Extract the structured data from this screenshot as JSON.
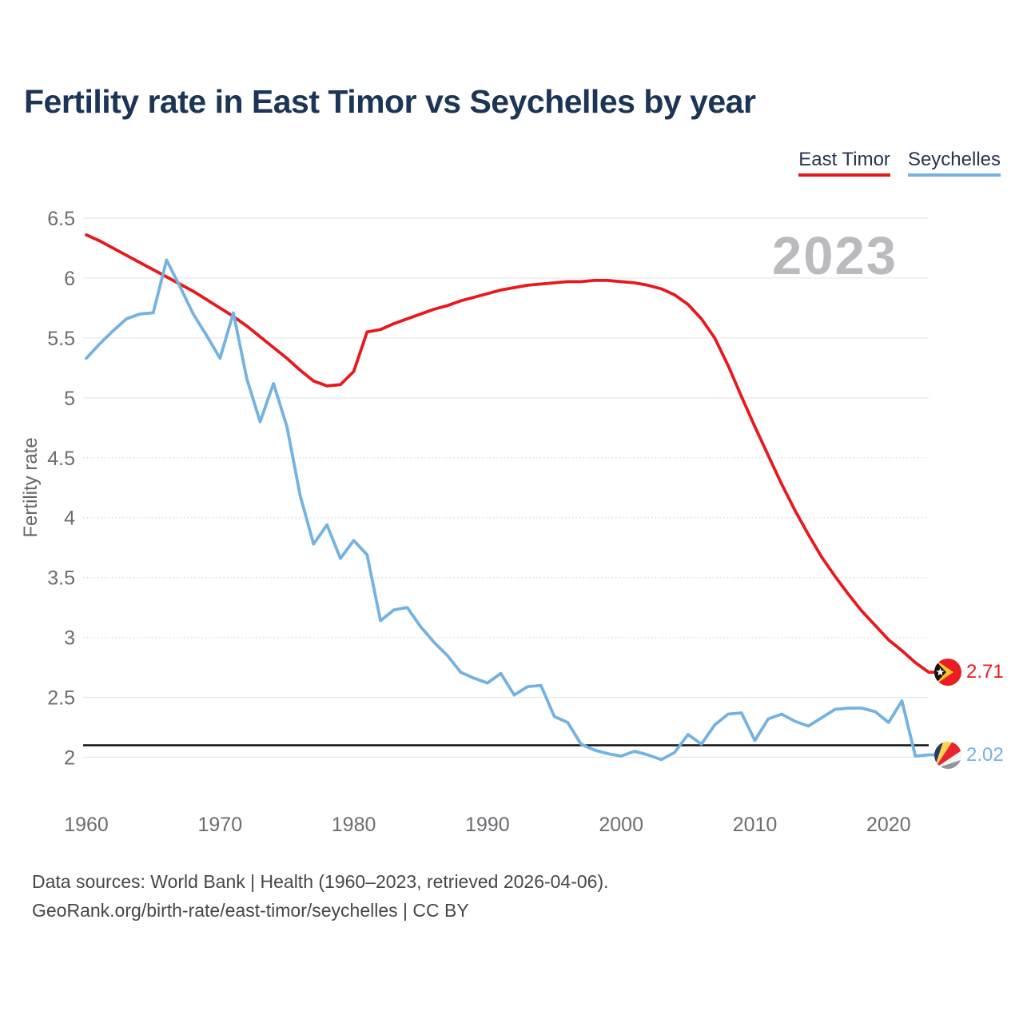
{
  "title": "Fertility rate in East Timor vs Seychelles by year",
  "legend": {
    "items": [
      {
        "label": "East Timor",
        "color": "#e8191d"
      },
      {
        "label": "Seychelles",
        "color": "#74b2e2"
      }
    ]
  },
  "watermark": "2023",
  "footer": {
    "line1": "Data sources: World Bank | Health (1960–2023, retrieved 2026-04-06).",
    "line2": "GeoRank.org/birth-rate/east-timor/seychelles | CC BY"
  },
  "chart_data": {
    "type": "line",
    "title": "Fertility rate in East Timor vs Seychelles by year",
    "xlabel": "",
    "ylabel": "Fertility rate",
    "xticks": [
      1960,
      1970,
      1980,
      1990,
      2000,
      2010,
      2020
    ],
    "yticks": [
      2,
      2.5,
      3,
      3.5,
      4,
      4.5,
      5,
      5.5,
      6,
      6.5
    ],
    "ylim": [
      1.85,
      6.6
    ],
    "xlim": [
      1960,
      2023
    ],
    "grid": true,
    "legend_position": "top-right",
    "reference_line": 2.1,
    "x": [
      1960,
      1961,
      1962,
      1963,
      1964,
      1965,
      1966,
      1967,
      1968,
      1969,
      1970,
      1971,
      1972,
      1973,
      1974,
      1975,
      1976,
      1977,
      1978,
      1979,
      1980,
      1981,
      1982,
      1983,
      1984,
      1985,
      1986,
      1987,
      1988,
      1989,
      1990,
      1991,
      1992,
      1993,
      1994,
      1995,
      1996,
      1997,
      1998,
      1999,
      2000,
      2001,
      2002,
      2003,
      2004,
      2005,
      2006,
      2007,
      2008,
      2009,
      2010,
      2011,
      2012,
      2013,
      2014,
      2015,
      2016,
      2017,
      2018,
      2019,
      2020,
      2021,
      2022,
      2023
    ],
    "series": [
      {
        "name": "East Timor",
        "color": "#e8191d",
        "end_label": "2.71",
        "values": [
          6.36,
          6.31,
          6.25,
          6.19,
          6.13,
          6.07,
          6.01,
          5.95,
          5.89,
          5.82,
          5.75,
          5.68,
          5.6,
          5.51,
          5.42,
          5.33,
          5.23,
          5.14,
          5.1,
          5.11,
          5.22,
          5.55,
          5.57,
          5.62,
          5.66,
          5.7,
          5.74,
          5.77,
          5.81,
          5.84,
          5.87,
          5.9,
          5.92,
          5.94,
          5.95,
          5.96,
          5.97,
          5.97,
          5.98,
          5.98,
          5.97,
          5.96,
          5.94,
          5.91,
          5.86,
          5.78,
          5.66,
          5.5,
          5.27,
          5.01,
          4.76,
          4.52,
          4.28,
          4.06,
          3.86,
          3.67,
          3.51,
          3.36,
          3.22,
          3.1,
          2.98,
          2.89,
          2.79,
          2.71
        ]
      },
      {
        "name": "Seychelles",
        "color": "#74b2e2",
        "end_label": "2.02",
        "values": [
          5.33,
          5.45,
          5.56,
          5.66,
          5.7,
          5.71,
          6.15,
          5.93,
          5.7,
          5.52,
          5.33,
          5.71,
          5.16,
          4.8,
          5.12,
          4.76,
          4.18,
          3.78,
          3.94,
          3.66,
          3.81,
          3.69,
          3.14,
          3.23,
          3.25,
          3.09,
          2.96,
          2.85,
          2.71,
          2.66,
          2.62,
          2.7,
          2.52,
          2.59,
          2.6,
          2.34,
          2.29,
          2.11,
          2.06,
          2.03,
          2.01,
          2.05,
          2.02,
          1.98,
          2.04,
          2.19,
          2.11,
          2.27,
          2.36,
          2.37,
          2.14,
          2.32,
          2.36,
          2.3,
          2.26,
          2.33,
          2.4,
          2.41,
          2.41,
          2.38,
          2.29,
          2.47,
          2.01,
          2.02
        ]
      }
    ]
  }
}
